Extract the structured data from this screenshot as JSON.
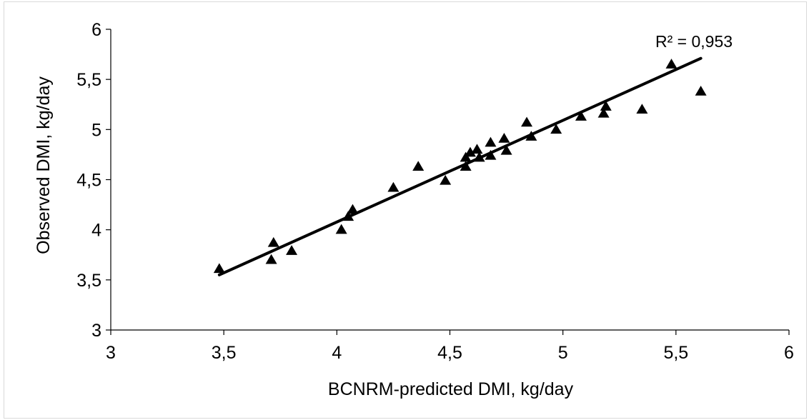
{
  "chart_data": {
    "type": "scatter",
    "title": "",
    "xlabel": "BCNRM-predicted DMI, kg/day",
    "ylabel": "Observed DMI, kg/day",
    "xlim": [
      3,
      6
    ],
    "ylim": [
      3,
      6
    ],
    "x_ticks": [
      "3",
      "3,5",
      "4",
      "4,5",
      "5",
      "5,5",
      "6"
    ],
    "y_ticks": [
      "3",
      "3,5",
      "4",
      "4,5",
      "5",
      "5,5",
      "6"
    ],
    "grid": false,
    "legend": "none",
    "marker": "triangle",
    "marker_color": "#000000",
    "points": [
      {
        "x": 3.48,
        "y": 3.61
      },
      {
        "x": 3.71,
        "y": 3.7
      },
      {
        "x": 3.72,
        "y": 3.87
      },
      {
        "x": 3.8,
        "y": 3.79
      },
      {
        "x": 4.02,
        "y": 4.0
      },
      {
        "x": 4.05,
        "y": 4.13
      },
      {
        "x": 4.07,
        "y": 4.2
      },
      {
        "x": 4.25,
        "y": 4.42
      },
      {
        "x": 4.36,
        "y": 4.63
      },
      {
        "x": 4.48,
        "y": 4.49
      },
      {
        "x": 4.57,
        "y": 4.63
      },
      {
        "x": 4.57,
        "y": 4.72
      },
      {
        "x": 4.59,
        "y": 4.77
      },
      {
        "x": 4.62,
        "y": 4.8
      },
      {
        "x": 4.63,
        "y": 4.72
      },
      {
        "x": 4.68,
        "y": 4.74
      },
      {
        "x": 4.68,
        "y": 4.87
      },
      {
        "x": 4.74,
        "y": 4.91
      },
      {
        "x": 4.75,
        "y": 4.79
      },
      {
        "x": 4.84,
        "y": 5.07
      },
      {
        "x": 4.86,
        "y": 4.93
      },
      {
        "x": 4.97,
        "y": 5.0
      },
      {
        "x": 5.08,
        "y": 5.13
      },
      {
        "x": 5.18,
        "y": 5.16
      },
      {
        "x": 5.19,
        "y": 5.23
      },
      {
        "x": 5.35,
        "y": 5.2
      },
      {
        "x": 5.48,
        "y": 5.65
      },
      {
        "x": 5.61,
        "y": 5.38
      }
    ],
    "trendline": {
      "type": "linear",
      "x_start": 3.48,
      "y_start": 3.55,
      "x_end": 5.61,
      "y_end": 5.71,
      "color": "#000000"
    },
    "annotation": "R² = 0,953"
  }
}
